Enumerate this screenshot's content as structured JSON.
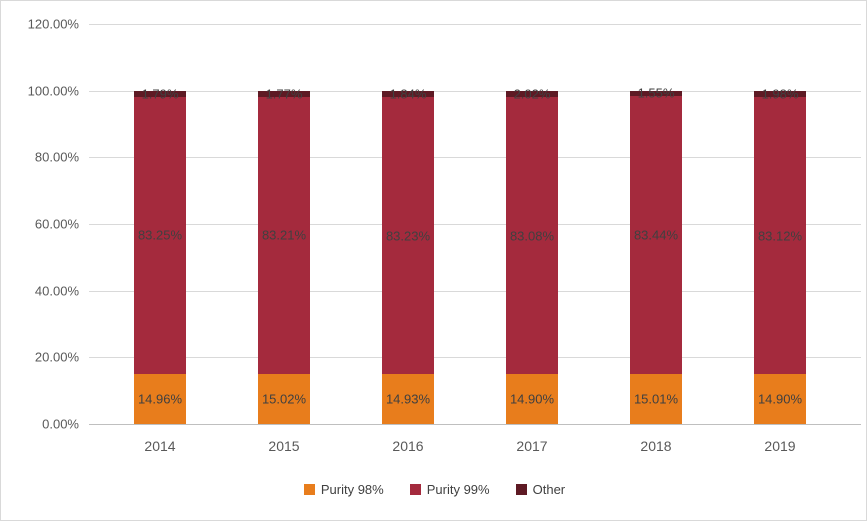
{
  "chart": {
    "y_axis_ticks": [
      "120.00%",
      "100.00%",
      "80.00%",
      "60.00%",
      "40.00%",
      "20.00%",
      "0.00%"
    ],
    "legend": [
      {
        "label": "Purity 98%",
        "color": "#E87D1C"
      },
      {
        "label": "Purity 99%",
        "color": "#A42A3D"
      },
      {
        "label": "Other",
        "color": "#5E1A24"
      }
    ]
  },
  "chart_data": {
    "type": "bar",
    "stacked": true,
    "title": "",
    "xlabel": "",
    "ylabel": "",
    "categories": [
      "2014",
      "2015",
      "2016",
      "2017",
      "2018",
      "2019"
    ],
    "series": [
      {
        "name": "Purity 98%",
        "color": "#E87D1C",
        "values": [
          14.96,
          15.02,
          14.93,
          14.9,
          15.01,
          14.9
        ],
        "labels": [
          "14.96%",
          "15.02%",
          "14.93%",
          "14.90%",
          "15.01%",
          "14.90%"
        ]
      },
      {
        "name": "Purity 99%",
        "color": "#A42A3D",
        "values": [
          83.25,
          83.21,
          83.23,
          83.08,
          83.44,
          83.12
        ],
        "labels": [
          "83.25%",
          "83.21%",
          "83.23%",
          "83.08%",
          "83.44%",
          "83.12%"
        ]
      },
      {
        "name": "Other",
        "color": "#5E1A24",
        "values": [
          1.79,
          1.77,
          1.84,
          2.02,
          1.55,
          1.98
        ],
        "labels": [
          "1.79%",
          "1.77%",
          "1.84%",
          "2.02%",
          "1.55%",
          "1.98%"
        ]
      }
    ],
    "ylim": [
      0,
      120
    ],
    "ytick_step": 20,
    "ytick_format": "0.00%",
    "grid": true,
    "legend_position": "bottom",
    "data_labels": "center"
  }
}
